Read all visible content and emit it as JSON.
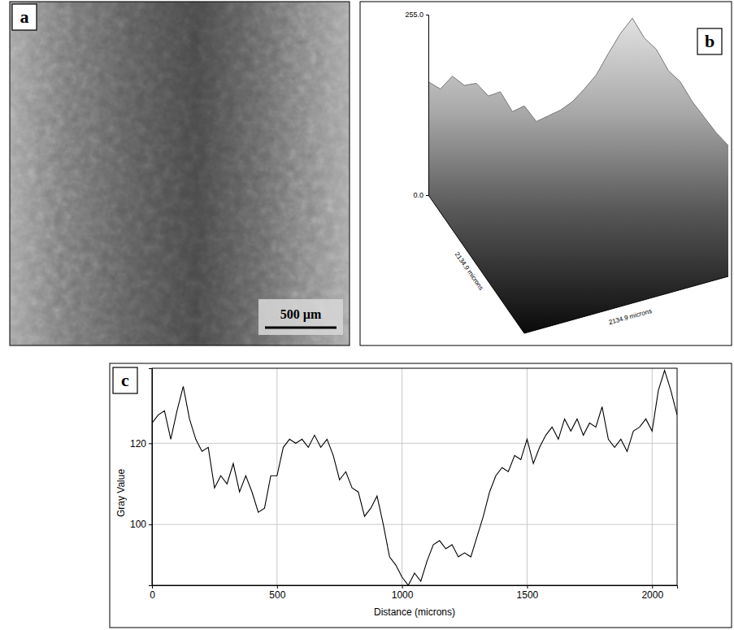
{
  "panel_labels": [
    "a",
    "b",
    "c"
  ],
  "micrograph": {
    "scale_bar": "500 µm"
  },
  "surface_plot": {
    "zlim": [
      0,
      255
    ],
    "zticks": [
      {
        "value": 255,
        "label": "255.0"
      },
      {
        "value": 0,
        "label": "0.0"
      }
    ],
    "x_label": "2134.9 microns",
    "y_label": "2134.9 microns",
    "profile_x": [
      0,
      4,
      8,
      12,
      16,
      20,
      24,
      28,
      32,
      36,
      40,
      44,
      48,
      52,
      56,
      60,
      64,
      68,
      72,
      76,
      80,
      84,
      88,
      92,
      96,
      100
    ],
    "profile": [
      160,
      150,
      168,
      155,
      158,
      140,
      146,
      118,
      126,
      104,
      112,
      120,
      132,
      150,
      170,
      200,
      228,
      250,
      222,
      206,
      176,
      160,
      132,
      110,
      88,
      70
    ]
  },
  "chart_data": {
    "type": "line",
    "x_label": "Distance (microns)",
    "y_label": "Gray Value",
    "color": "#000000",
    "grid": true,
    "xlim": [
      0,
      2100
    ],
    "ylim": [
      85,
      138.5
    ],
    "xticks": [
      0,
      500,
      1000,
      1500,
      2000
    ],
    "yticks": [
      100,
      120
    ],
    "x": [
      0,
      25,
      50,
      75,
      100,
      125,
      150,
      175,
      200,
      225,
      250,
      275,
      300,
      325,
      350,
      375,
      400,
      425,
      450,
      475,
      500,
      525,
      550,
      575,
      600,
      625,
      650,
      675,
      700,
      725,
      750,
      775,
      800,
      825,
      850,
      875,
      900,
      925,
      950,
      975,
      1000,
      1025,
      1050,
      1075,
      1100,
      1125,
      1150,
      1175,
      1200,
      1225,
      1250,
      1275,
      1300,
      1325,
      1350,
      1375,
      1400,
      1425,
      1450,
      1475,
      1500,
      1525,
      1550,
      1575,
      1600,
      1625,
      1650,
      1675,
      1700,
      1725,
      1750,
      1775,
      1800,
      1825,
      1850,
      1875,
      1900,
      1925,
      1950,
      1975,
      2000,
      2025,
      2050,
      2075,
      2100
    ],
    "values": [
      125,
      127,
      128,
      121,
      128,
      134,
      126,
      121,
      118,
      119,
      109,
      112,
      110,
      115,
      108,
      112,
      108,
      103,
      104,
      112,
      112,
      119,
      121,
      120,
      121,
      119,
      122,
      119,
      121,
      117,
      111,
      113,
      109,
      108,
      102,
      104,
      107,
      100,
      92,
      90,
      87,
      85,
      88,
      86,
      91,
      95,
      96,
      94,
      95,
      92,
      93,
      92,
      97,
      102,
      108,
      112,
      114,
      113,
      117,
      116,
      121,
      115,
      119,
      122,
      124,
      121,
      126,
      123,
      126,
      122,
      125,
      124,
      129,
      121,
      119,
      121,
      118,
      123,
      124,
      126,
      123,
      133,
      138,
      133,
      127
    ]
  }
}
